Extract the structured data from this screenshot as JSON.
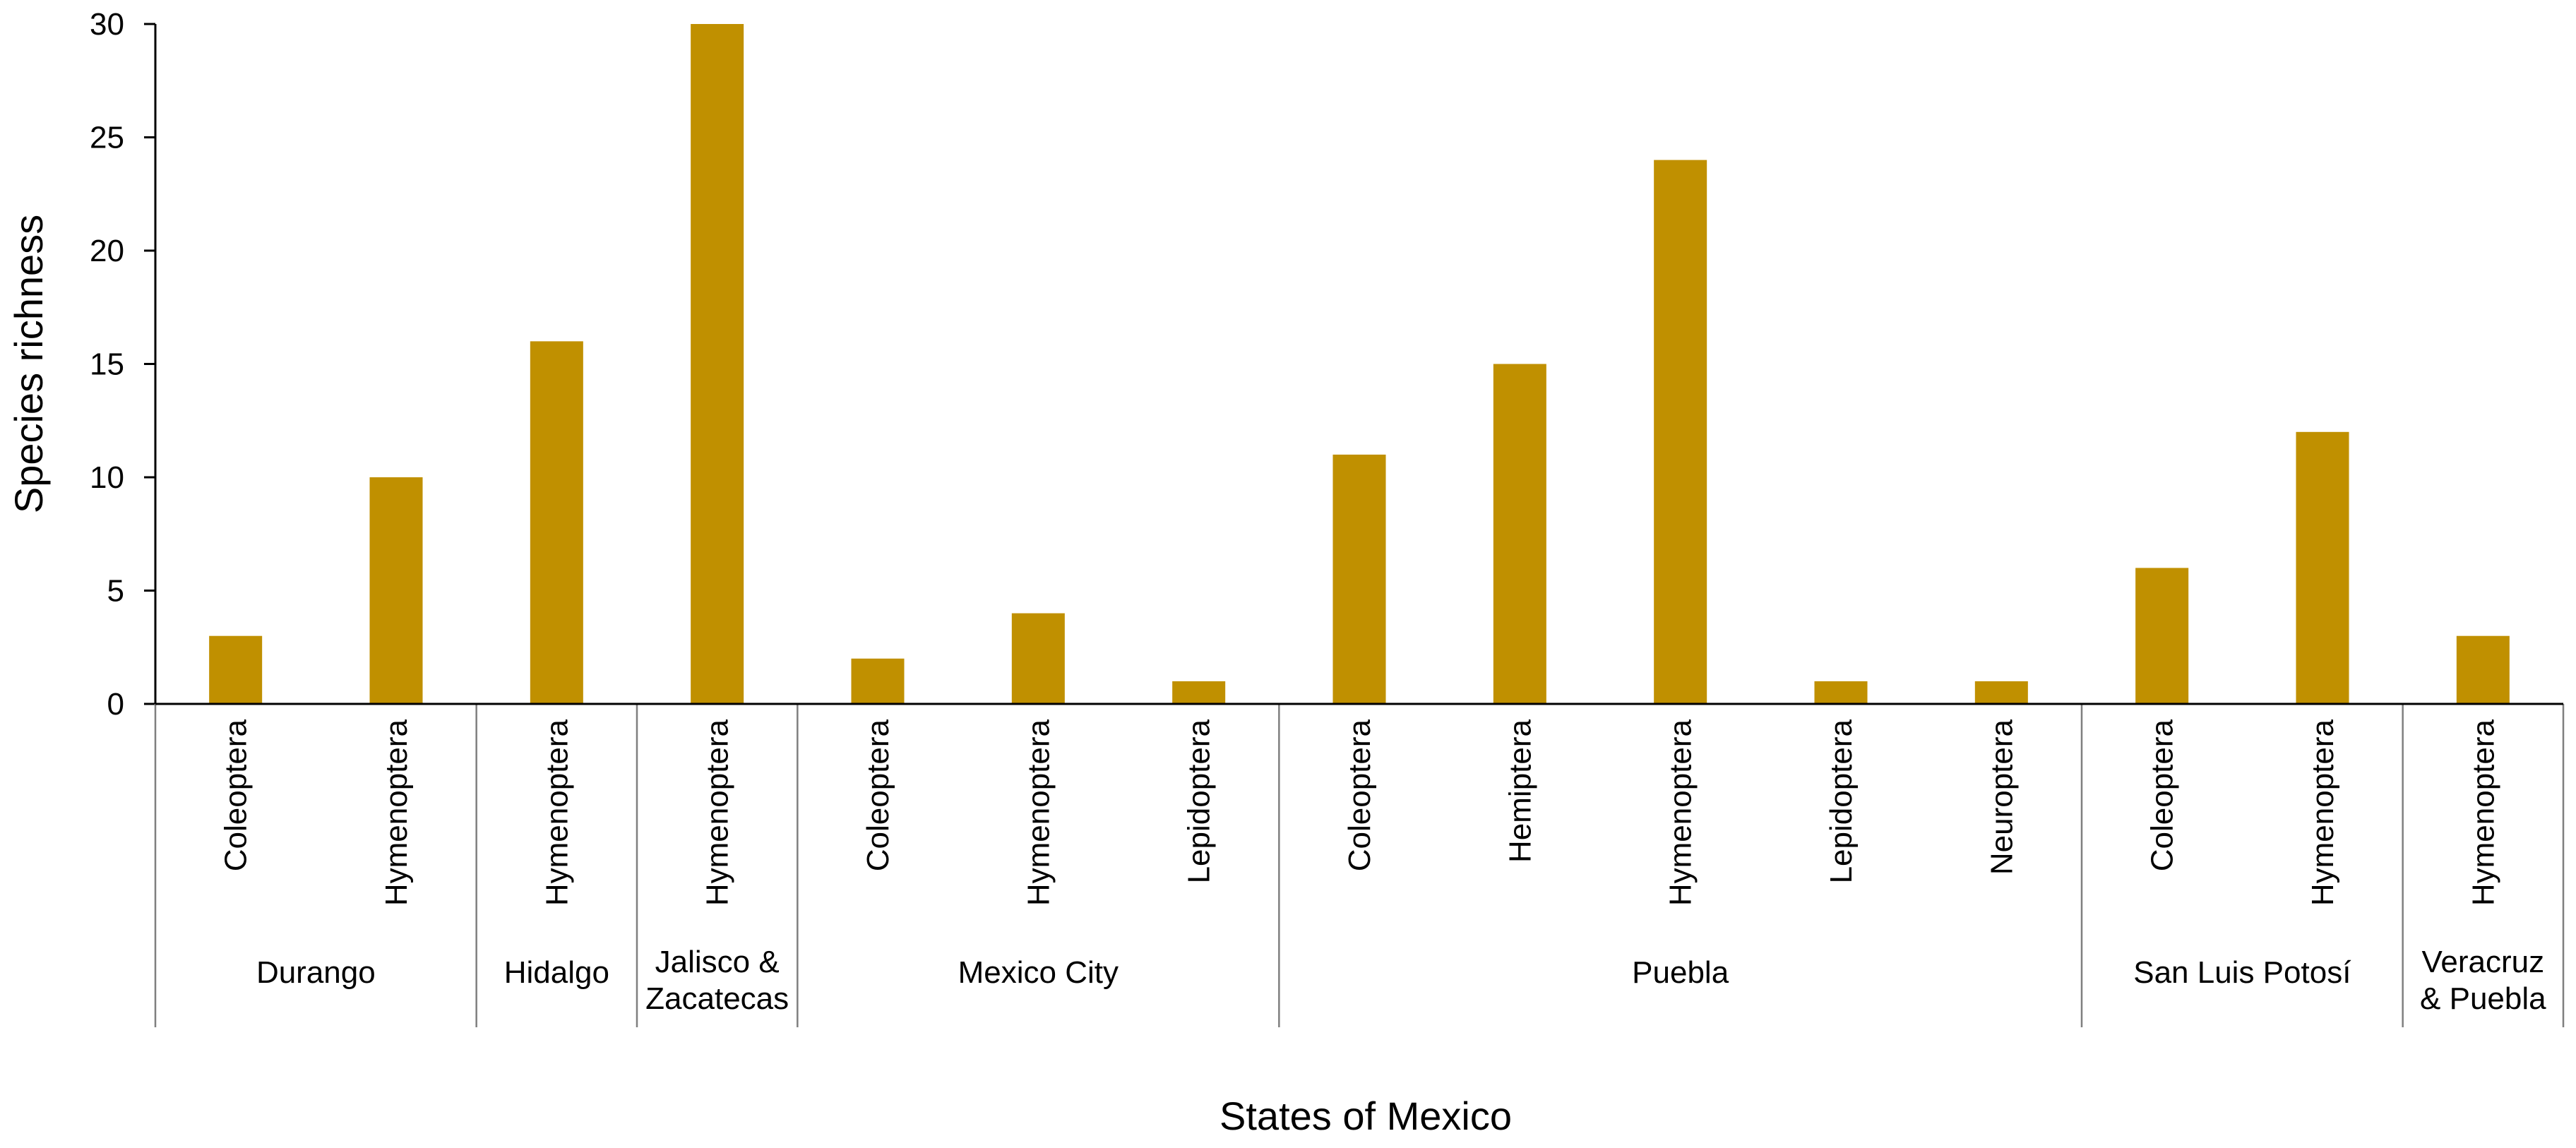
{
  "chart_data": {
    "type": "bar",
    "title": "",
    "xlabel": "States of Mexico",
    "ylabel": "Species richness",
    "ylim": [
      0,
      30
    ],
    "yticks": [
      0,
      5,
      10,
      15,
      20,
      25,
      30
    ],
    "grid": false,
    "legend": "none",
    "bar_color": "#c09000",
    "groups": [
      {
        "name": "Durango",
        "categories": [
          "Coleoptera",
          "Hymenoptera"
        ],
        "values": [
          3,
          10
        ]
      },
      {
        "name": "Hidalgo",
        "categories": [
          "Hymenoptera"
        ],
        "values": [
          16
        ]
      },
      {
        "name": "Jalisco & Zacatecas",
        "name_lines": [
          "Jalisco &",
          "Zacatecas"
        ],
        "categories": [
          "Hymenoptera"
        ],
        "values": [
          30
        ]
      },
      {
        "name": "Mexico City",
        "categories": [
          "Coleoptera",
          "Hymenoptera",
          "Lepidoptera"
        ],
        "values": [
          2,
          4,
          1
        ]
      },
      {
        "name": "Puebla",
        "categories": [
          "Coleoptera",
          "Hemiptera",
          "Hymenoptera",
          "Lepidoptera",
          "Neuroptera"
        ],
        "values": [
          11,
          15,
          24,
          1,
          1
        ]
      },
      {
        "name": "San Luis Potosí",
        "categories": [
          "Coleoptera",
          "Hymenoptera"
        ],
        "values": [
          6,
          12
        ]
      },
      {
        "name": "Veracruz & Puebla",
        "name_lines": [
          "Veracruz",
          "& Puebla"
        ],
        "categories": [
          "Hymenoptera"
        ],
        "values": [
          3
        ]
      }
    ]
  }
}
